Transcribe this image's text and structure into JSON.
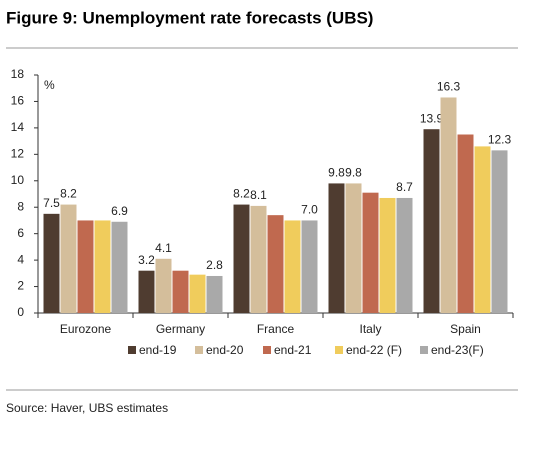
{
  "chart_data": {
    "type": "bar",
    "title": "Figure 9: Unemployment rate forecasts (UBS)",
    "y_label": "%",
    "source": "Source: Haver, UBS estimates",
    "categories": [
      "Eurozone",
      "Germany",
      "France",
      "Italy",
      "Spain"
    ],
    "series": [
      {
        "name": "end-19",
        "color": "#4f3c30",
        "values": [
          7.5,
          3.2,
          8.2,
          9.8,
          13.9
        ],
        "value_labels": [
          "7.5",
          "3.2",
          "8.2",
          "9.8",
          "13.9"
        ]
      },
      {
        "name": "end-20",
        "color": "#d4be9b",
        "values": [
          8.2,
          4.1,
          8.1,
          9.8,
          16.3
        ],
        "value_labels": [
          "8.2",
          "4.1",
          "8.1",
          "9.8",
          "16.3"
        ]
      },
      {
        "name": "end-21",
        "color": "#c0694f",
        "values": [
          7.0,
          3.2,
          7.4,
          9.1,
          13.5
        ],
        "value_labels": [
          null,
          null,
          null,
          null,
          null
        ]
      },
      {
        "name": "end-22 (F)",
        "color": "#f0cc5c",
        "values": [
          7.0,
          2.9,
          7.0,
          8.7,
          12.6
        ],
        "value_labels": [
          null,
          null,
          null,
          null,
          null
        ]
      },
      {
        "name": "end-23(F)",
        "color": "#a9a9a9",
        "values": [
          6.9,
          2.8,
          7.0,
          8.7,
          12.3
        ],
        "value_labels": [
          "6.9",
          "2.8",
          "7.0",
          "8.7",
          "12.3"
        ]
      }
    ],
    "ylim": [
      0,
      18
    ],
    "yticks": [
      0,
      2,
      4,
      6,
      8,
      10,
      12,
      14,
      16,
      18
    ],
    "grid": false
  }
}
